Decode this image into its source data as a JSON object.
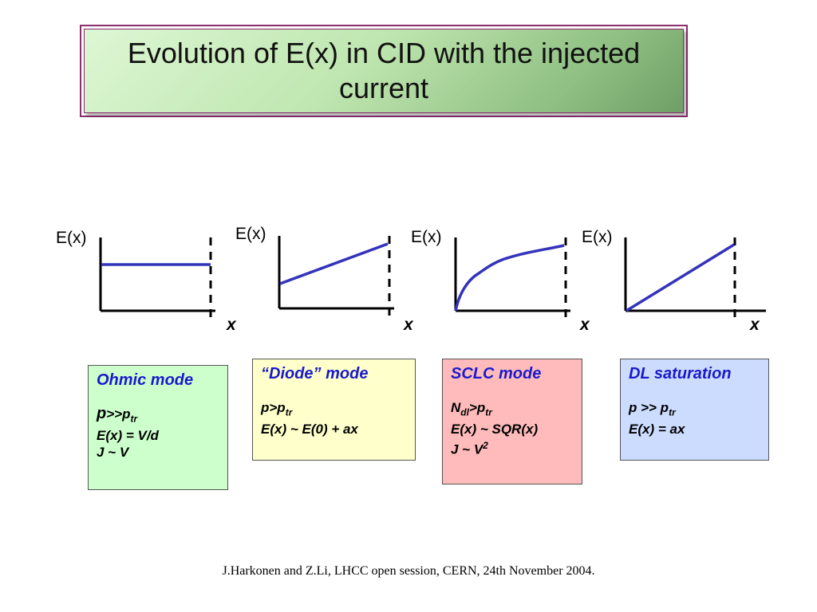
{
  "title": "Evolution of E(x) in CID with the injected current",
  "graphs": [
    {
      "y_label": "E(x)",
      "x_label": "x",
      "curve": "constant"
    },
    {
      "y_label": "E(x)",
      "x_label": "x",
      "curve": "linear-offset"
    },
    {
      "y_label": "E(x)",
      "x_label": "x",
      "curve": "sqrt"
    },
    {
      "y_label": "E(x)",
      "x_label": "x",
      "curve": "linear-origin"
    }
  ],
  "boxes": {
    "ohmic": {
      "title": "Ohmic mode",
      "l1_pre": "p",
      "l1_mid": ">>p",
      "l1_sub": "tr",
      "l2": "E(x) = V/d",
      "l3": "J ~ V",
      "color": "#ccffcc"
    },
    "diode": {
      "title": "“Diode” mode",
      "l1_pre": "p>p",
      "l1_sub": "tr",
      "l2": "E(x) ~ E(0) + ax",
      "color": "#ffffcc"
    },
    "sclc": {
      "title": "SCLC mode",
      "l1_pre": "N",
      "l1_sub1": "dl",
      "l1_mid": ">p",
      "l1_sub2": "tr",
      "l2": "E(x) ~ SQR(x)",
      "l3_pre": "J ~ V",
      "l3_sup": "2",
      "color": "#ffbbbb"
    },
    "dl": {
      "title": "DL saturation",
      "l1_pre": "p >> p",
      "l1_sub": "tr",
      "l2": "E(x) = ax",
      "color": "#ccdcff"
    }
  },
  "footer": "J.Harkonen and Z.Li, LHCC open session, CERN, 24th November 2004.",
  "colors": {
    "curve": "#3333bb",
    "title_border": "#8a2e6e",
    "box_title": "#1a1acc"
  }
}
